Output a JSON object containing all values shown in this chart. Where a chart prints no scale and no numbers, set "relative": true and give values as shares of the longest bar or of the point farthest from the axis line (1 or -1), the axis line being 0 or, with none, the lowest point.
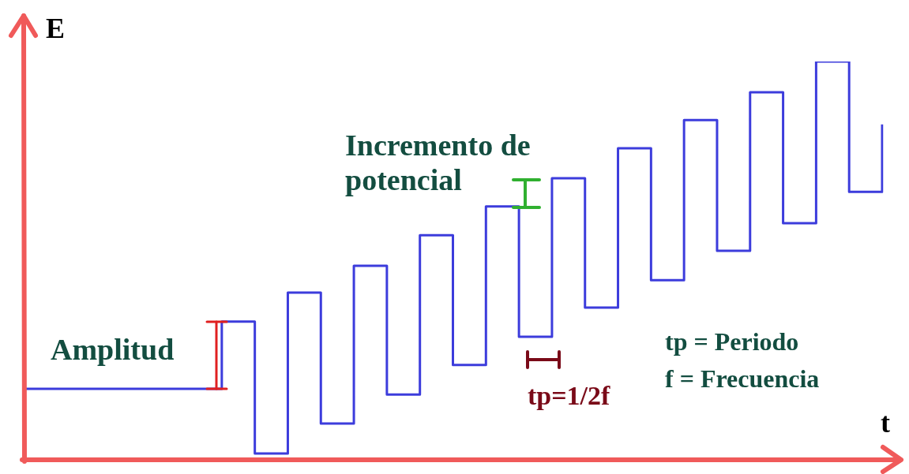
{
  "chart_data": {
    "type": "step",
    "relative": true,
    "xlabel": "t",
    "ylabel": "E",
    "categories": [
      null,
      null,
      null,
      null,
      null,
      null,
      null,
      null,
      null,
      null,
      null,
      null,
      null,
      null,
      null,
      null,
      null,
      null,
      null,
      null,
      null,
      null,
      null,
      null,
      null,
      null,
      null
    ],
    "series": [
      {
        "color": "#3c3cdc",
        "values": [
          0.178,
          0.178,
          0.178,
          0.178,
          0.178,
          0.178,
          0.347,
          0.016,
          0.42,
          0.091,
          0.487,
          0.164,
          0.564,
          0.238,
          0.636,
          0.309,
          0.707,
          0.382,
          0.782,
          0.451,
          0.853,
          0.525,
          0.923,
          0.594,
          1,
          0.673,
          0.842
        ]
      }
    ],
    "annotations": [
      "Amplitud",
      "Incremento de potencial",
      "tp=1/2f",
      "tp = Periodo",
      "f = Frecuencia"
    ],
    "legend": false
  }
}
